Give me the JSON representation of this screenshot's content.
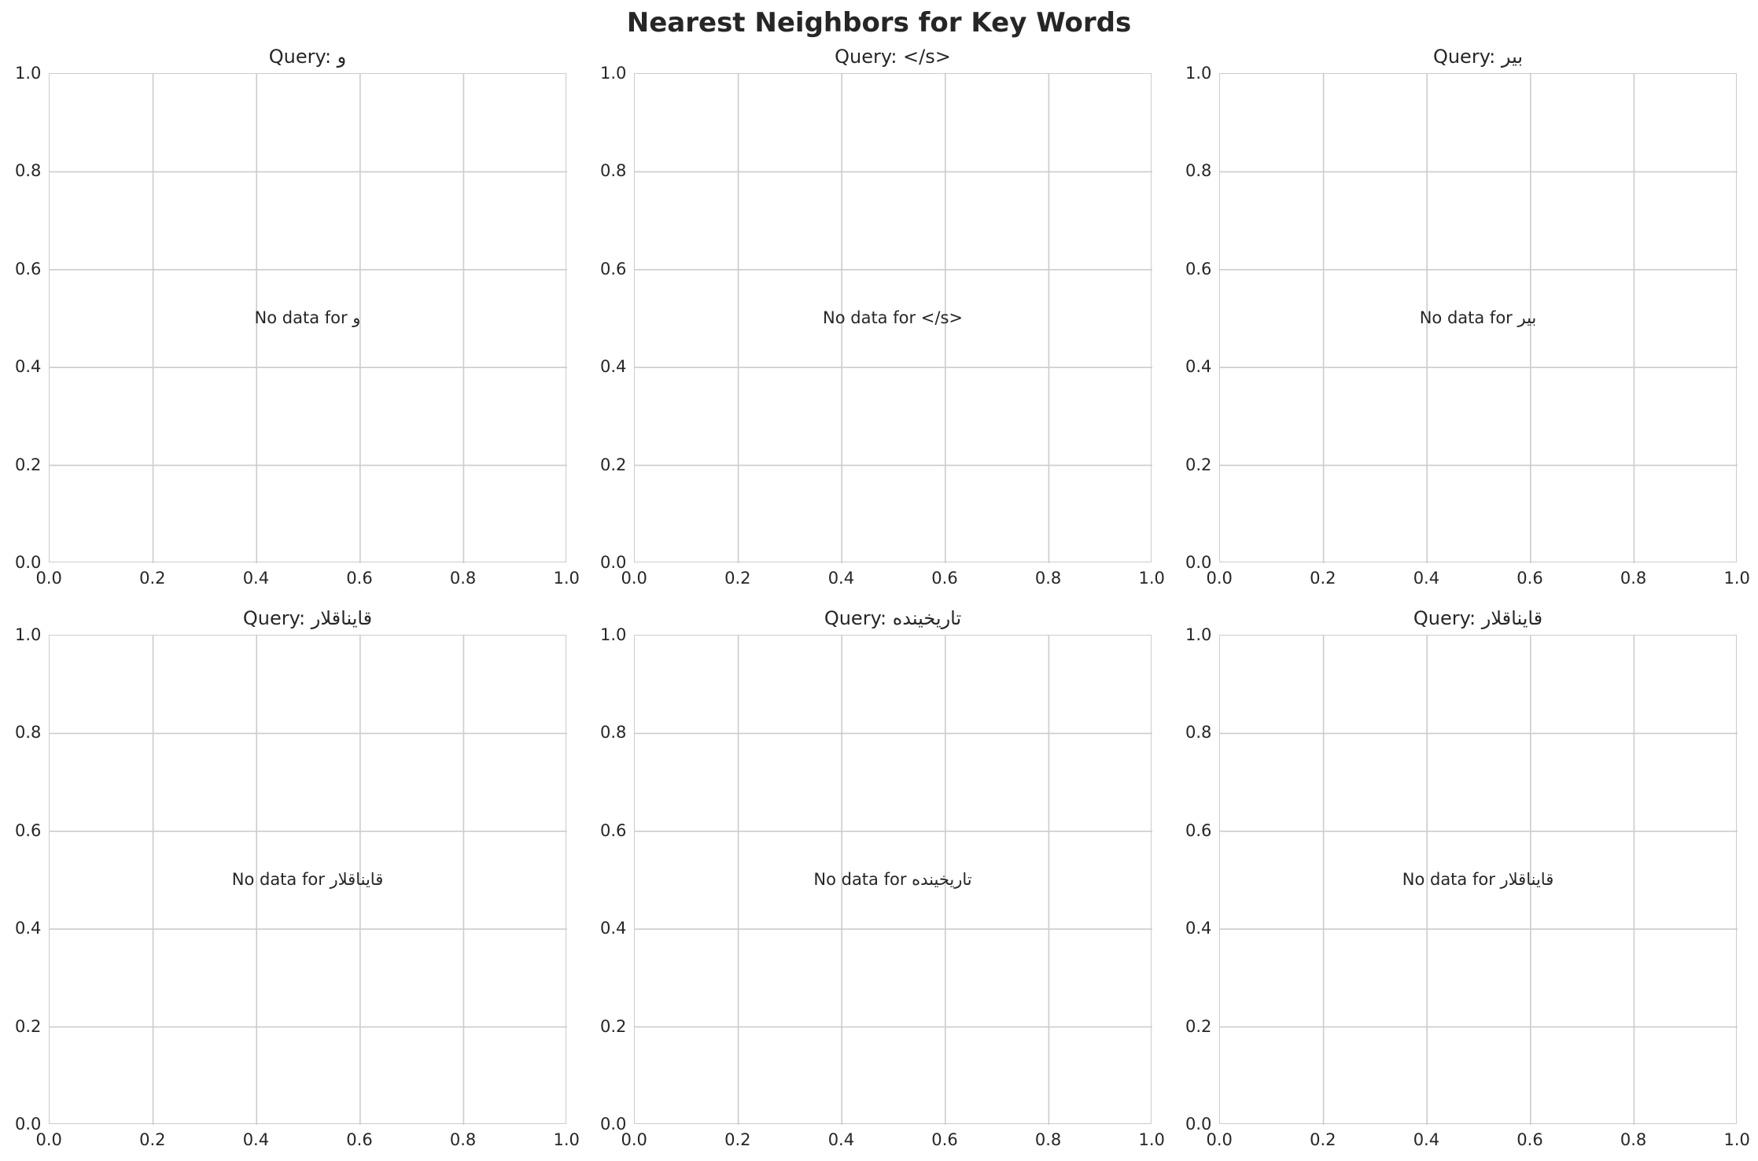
{
  "title": "Nearest Neighbors for Key Words",
  "chart_data": [
    {
      "type": "scatter",
      "title": "Query: و",
      "annotation": "No data for و",
      "xlim": [
        0,
        1
      ],
      "ylim": [
        0,
        1
      ],
      "grid": true,
      "xticks": [
        "0.0",
        "0.2",
        "0.4",
        "0.6",
        "0.8",
        "1.0"
      ],
      "yticks": [
        "0.0",
        "0.2",
        "0.4",
        "0.6",
        "0.8",
        "1.0"
      ],
      "points": []
    },
    {
      "type": "scatter",
      "title": "Query: </s>",
      "annotation": "No data for </s>",
      "xlim": [
        0,
        1
      ],
      "ylim": [
        0,
        1
      ],
      "grid": true,
      "xticks": [
        "0.0",
        "0.2",
        "0.4",
        "0.6",
        "0.8",
        "1.0"
      ],
      "yticks": [
        "0.0",
        "0.2",
        "0.4",
        "0.6",
        "0.8",
        "1.0"
      ],
      "points": []
    },
    {
      "type": "scatter",
      "title": "Query: بیر",
      "annotation": "No data for بیر",
      "xlim": [
        0,
        1
      ],
      "ylim": [
        0,
        1
      ],
      "grid": true,
      "xticks": [
        "0.0",
        "0.2",
        "0.4",
        "0.6",
        "0.8",
        "1.0"
      ],
      "yticks": [
        "0.0",
        "0.2",
        "0.4",
        "0.6",
        "0.8",
        "1.0"
      ],
      "points": []
    },
    {
      "type": "scatter",
      "title": "Query: قایناقلار",
      "annotation": "No data for قایناقلار",
      "xlim": [
        0,
        1
      ],
      "ylim": [
        0,
        1
      ],
      "grid": true,
      "xticks": [
        "0.0",
        "0.2",
        "0.4",
        "0.6",
        "0.8",
        "1.0"
      ],
      "yticks": [
        "0.0",
        "0.2",
        "0.4",
        "0.6",
        "0.8",
        "1.0"
      ],
      "points": []
    },
    {
      "type": "scatter",
      "title": "Query: تاریخینده",
      "annotation": "No data for تاریخینده",
      "xlim": [
        0,
        1
      ],
      "ylim": [
        0,
        1
      ],
      "grid": true,
      "xticks": [
        "0.0",
        "0.2",
        "0.4",
        "0.6",
        "0.8",
        "1.0"
      ],
      "yticks": [
        "0.0",
        "0.2",
        "0.4",
        "0.6",
        "0.8",
        "1.0"
      ],
      "points": []
    },
    {
      "type": "scatter",
      "title": "Query: قایناقلار",
      "annotation": "No data for قایناقلار",
      "xlim": [
        0,
        1
      ],
      "ylim": [
        0,
        1
      ],
      "grid": true,
      "xticks": [
        "0.0",
        "0.2",
        "0.4",
        "0.6",
        "0.8",
        "1.0"
      ],
      "yticks": [
        "0.0",
        "0.2",
        "0.4",
        "0.6",
        "0.8",
        "1.0"
      ],
      "points": []
    }
  ],
  "colors": {
    "grid": "#cccccc",
    "text": "#262626",
    "background": "#ffffff"
  }
}
